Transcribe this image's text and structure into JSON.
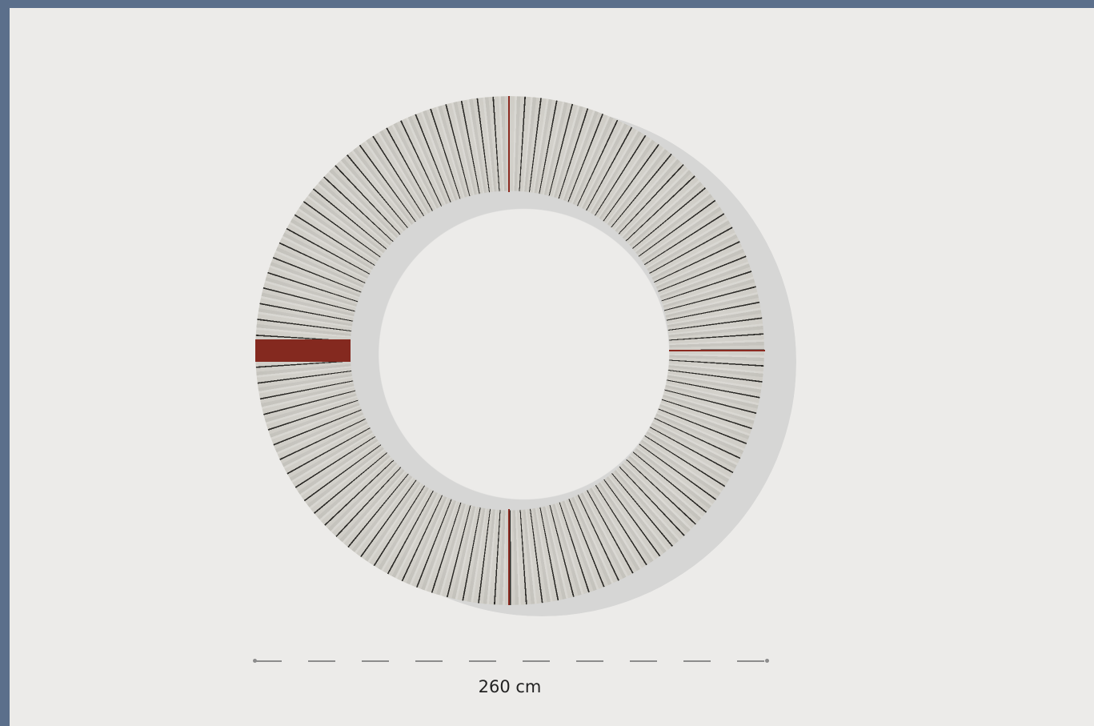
{
  "dimension": {
    "label": "260 cm"
  }
}
